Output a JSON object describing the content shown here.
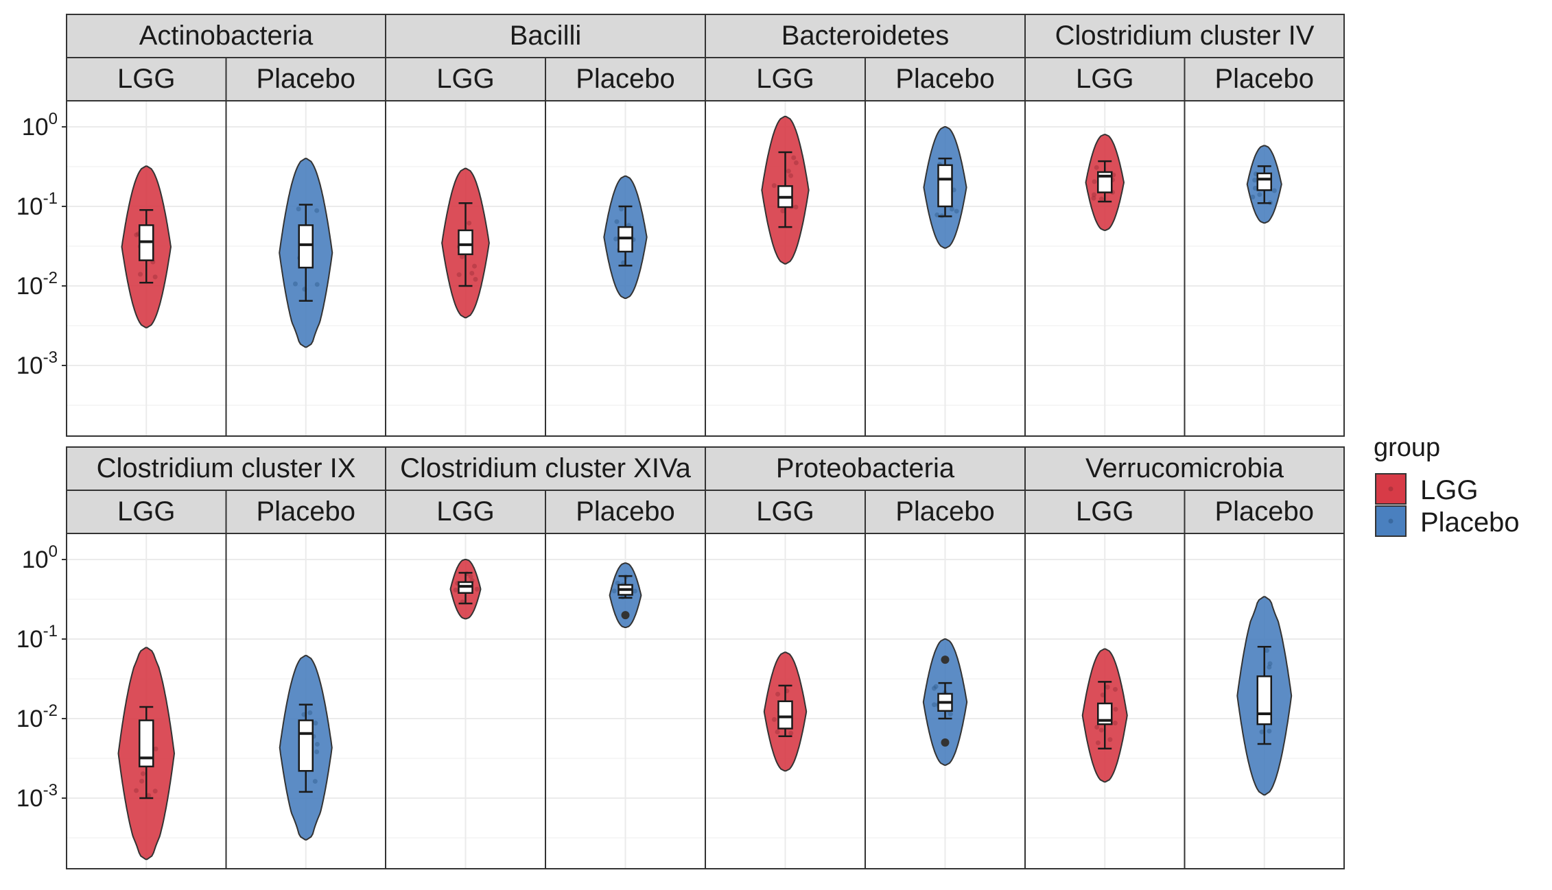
{
  "chart_data": {
    "type": "violin",
    "title": "",
    "xlabel": "",
    "ylabel": "",
    "y_scale": "log10",
    "ylim": [
      0.0002,
      2
    ],
    "y_ticks": [
      {
        "value": 1,
        "base": "10",
        "exp": "0"
      },
      {
        "value": 0.1,
        "base": "10",
        "exp": "-1"
      },
      {
        "value": 0.01,
        "base": "10",
        "exp": "-2"
      },
      {
        "value": 0.001,
        "base": "10",
        "exp": "-3"
      }
    ],
    "grid": true,
    "legend": {
      "title": "group",
      "placement": "right",
      "entries": [
        {
          "label": "LGG",
          "color": "#d73b47"
        },
        {
          "label": "Placebo",
          "color": "#4a80bf"
        }
      ]
    },
    "colors": {
      "LGG": "#d73b47",
      "Placebo": "#4a80bf",
      "strip_bg": "#d9d9d9",
      "panel_border": "#333333"
    },
    "facets": [
      {
        "label": "Actinobacteria",
        "groups": [
          {
            "name": "LGG",
            "violin": [
              0.003,
              0.32
            ],
            "mode": 0.04,
            "box": {
              "lower_whisker": 0.011,
              "q1": 0.021,
              "median": 0.036,
              "q3": 0.058,
              "upper_whisker": 0.09
            },
            "outliers": []
          },
          {
            "name": "Placebo",
            "violin": [
              0.0017,
              0.4
            ],
            "mode": 0.045,
            "box": {
              "lower_whisker": 0.0065,
              "q1": 0.017,
              "median": 0.033,
              "q3": 0.058,
              "upper_whisker": 0.105
            },
            "outliers": []
          }
        ]
      },
      {
        "label": "Bacilli",
        "groups": [
          {
            "name": "LGG",
            "violin": [
              0.004,
              0.3
            ],
            "mode": 0.035,
            "box": {
              "lower_whisker": 0.01,
              "q1": 0.025,
              "median": 0.033,
              "q3": 0.05,
              "upper_whisker": 0.11
            },
            "outliers": []
          },
          {
            "name": "Placebo",
            "violin": [
              0.007,
              0.24
            ],
            "mode": 0.045,
            "box": {
              "lower_whisker": 0.018,
              "q1": 0.027,
              "median": 0.04,
              "q3": 0.055,
              "upper_whisker": 0.1
            },
            "outliers": []
          }
        ]
      },
      {
        "label": "Bacteroidetes",
        "groups": [
          {
            "name": "LGG",
            "violin": [
              0.019,
              1.35
            ],
            "mode": 0.1,
            "box": {
              "lower_whisker": 0.055,
              "q1": 0.098,
              "median": 0.13,
              "q3": 0.18,
              "upper_whisker": 0.48
            },
            "outliers": []
          },
          {
            "name": "Placebo",
            "violin": [
              0.03,
              1.0
            ],
            "mode": 0.3,
            "box": {
              "lower_whisker": 0.075,
              "q1": 0.1,
              "median": 0.22,
              "q3": 0.33,
              "upper_whisker": 0.4
            },
            "outliers": []
          }
        ]
      },
      {
        "label": "Clostridium cluster IV",
        "groups": [
          {
            "name": "LGG",
            "violin": [
              0.05,
              0.8
            ],
            "mode": 0.28,
            "box": {
              "lower_whisker": 0.115,
              "q1": 0.15,
              "median": 0.24,
              "q3": 0.27,
              "upper_whisker": 0.37
            },
            "outliers": []
          },
          {
            "name": "Placebo",
            "violin": [
              0.062,
              0.58
            ],
            "mode": 0.25,
            "box": {
              "lower_whisker": 0.11,
              "q1": 0.16,
              "median": 0.22,
              "q3": 0.26,
              "upper_whisker": 0.32
            },
            "outliers": []
          }
        ]
      },
      {
        "label": "Clostridium cluster IX",
        "groups": [
          {
            "name": "LGG",
            "violin": [
              0.00017,
              0.078
            ],
            "mode": 0.004,
            "box": {
              "lower_whisker": 0.001,
              "q1": 0.0025,
              "median": 0.0032,
              "q3": 0.0095,
              "upper_whisker": 0.014
            },
            "outliers": []
          },
          {
            "name": "Placebo",
            "violin": [
              0.0003,
              0.062
            ],
            "mode": 0.009,
            "box": {
              "lower_whisker": 0.0012,
              "q1": 0.0022,
              "median": 0.0065,
              "q3": 0.0095,
              "upper_whisker": 0.015
            },
            "outliers": []
          }
        ]
      },
      {
        "label": "Clostridium cluster XIVa",
        "groups": [
          {
            "name": "LGG",
            "violin": [
              0.18,
              1.0
            ],
            "mode": 0.48,
            "box": {
              "lower_whisker": 0.28,
              "q1": 0.38,
              "median": 0.46,
              "q3": 0.52,
              "upper_whisker": 0.68
            },
            "outliers": []
          },
          {
            "name": "Placebo",
            "violin": [
              0.14,
              0.9
            ],
            "mode": 0.44,
            "box": {
              "lower_whisker": 0.33,
              "q1": 0.36,
              "median": 0.42,
              "q3": 0.48,
              "upper_whisker": 0.62
            },
            "outliers": [
              0.2
            ]
          }
        ]
      },
      {
        "label": "Proteobacteria",
        "groups": [
          {
            "name": "LGG",
            "violin": [
              0.0022,
              0.068
            ],
            "mode": 0.01,
            "box": {
              "lower_whisker": 0.006,
              "q1": 0.0075,
              "median": 0.0105,
              "q3": 0.0165,
              "upper_whisker": 0.026
            },
            "outliers": []
          },
          {
            "name": "Placebo",
            "violin": [
              0.0026,
              0.1
            ],
            "mode": 0.015,
            "box": {
              "lower_whisker": 0.01,
              "q1": 0.0125,
              "median": 0.016,
              "q3": 0.0205,
              "upper_whisker": 0.028
            },
            "outliers": [
              0.055,
              0.005
            ]
          }
        ]
      },
      {
        "label": "Verrucomicrobia",
        "groups": [
          {
            "name": "LGG",
            "violin": [
              0.0016,
              0.075
            ],
            "mode": 0.01,
            "box": {
              "lower_whisker": 0.0042,
              "q1": 0.0085,
              "median": 0.0095,
              "q3": 0.0155,
              "upper_whisker": 0.029
            },
            "outliers": []
          },
          {
            "name": "Placebo",
            "violin": [
              0.0011,
              0.34
            ],
            "mode": 0.013,
            "box": {
              "lower_whisker": 0.0048,
              "q1": 0.0085,
              "median": 0.0115,
              "q3": 0.034,
              "upper_whisker": 0.08
            },
            "outliers": []
          }
        ]
      }
    ]
  }
}
